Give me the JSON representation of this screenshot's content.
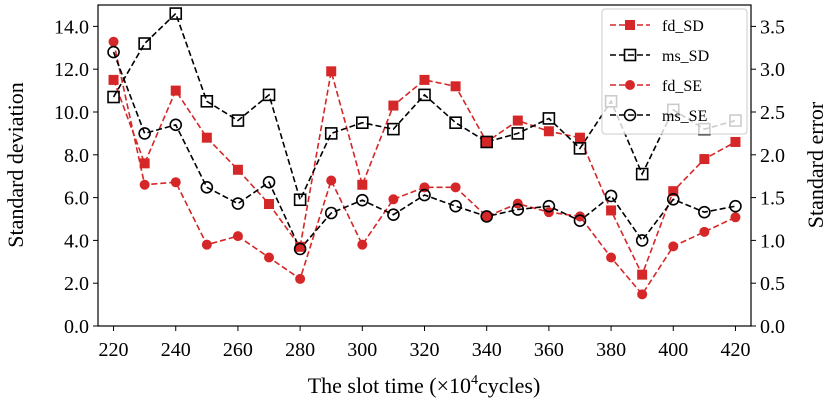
{
  "chart_data": {
    "type": "line",
    "xlabel_prefix": "The slot time (×10",
    "xlabel_exponent": "4",
    "xlabel_suffix": "cycles)",
    "ylabel_left": "Standard deviation",
    "ylabel_right": "Standard error",
    "x": [
      220,
      230,
      240,
      250,
      260,
      270,
      280,
      290,
      300,
      310,
      320,
      330,
      340,
      350,
      360,
      370,
      380,
      390,
      400,
      410,
      420
    ],
    "xlim": [
      215,
      425
    ],
    "xticks": [
      220,
      240,
      260,
      280,
      300,
      320,
      340,
      360,
      380,
      400,
      420
    ],
    "ylim_left": [
      0,
      15
    ],
    "yticks_left": [
      "0.0",
      "2.0",
      "4.0",
      "6.0",
      "8.0",
      "10.0",
      "12.0",
      "14.0"
    ],
    "ylim_right": [
      0,
      3.75
    ],
    "yticks_right": [
      "0.0",
      "0.5",
      "1.0",
      "1.5",
      "2.0",
      "2.5",
      "3.0",
      "3.5"
    ],
    "legend_position": "top-right",
    "series": [
      {
        "name": "fd_SD",
        "axis": "left",
        "color": "#d62728",
        "marker": "square-filled",
        "values": [
          11.5,
          7.6,
          11.0,
          8.8,
          7.3,
          5.7,
          3.7,
          11.9,
          6.6,
          10.3,
          11.5,
          11.2,
          8.6,
          9.6,
          9.1,
          8.8,
          5.4,
          2.4,
          6.3,
          7.8,
          8.6
        ]
      },
      {
        "name": "ms_SD",
        "axis": "left",
        "color": "#000000",
        "marker": "square-open",
        "values": [
          10.7,
          13.2,
          14.6,
          10.5,
          9.6,
          10.8,
          5.9,
          9.0,
          9.5,
          9.2,
          10.8,
          9.5,
          8.6,
          9.0,
          9.7,
          8.3,
          10.5,
          7.1,
          10.1,
          9.2,
          9.6
        ]
      },
      {
        "name": "fd_SE",
        "axis": "right",
        "color": "#d62728",
        "marker": "circle-filled",
        "values": [
          3.32,
          1.65,
          1.68,
          0.95,
          1.05,
          0.8,
          0.55,
          1.7,
          0.95,
          1.48,
          1.62,
          1.62,
          1.28,
          1.43,
          1.33,
          1.28,
          0.8,
          0.37,
          0.93,
          1.1,
          1.27
        ]
      },
      {
        "name": "ms_SE",
        "axis": "right",
        "color": "#000000",
        "marker": "circle-open",
        "values": [
          3.2,
          2.25,
          2.35,
          1.62,
          1.43,
          1.68,
          0.9,
          1.32,
          1.47,
          1.3,
          1.53,
          1.4,
          1.28,
          1.36,
          1.4,
          1.23,
          1.52,
          1.0,
          1.48,
          1.33,
          1.4
        ]
      }
    ]
  }
}
